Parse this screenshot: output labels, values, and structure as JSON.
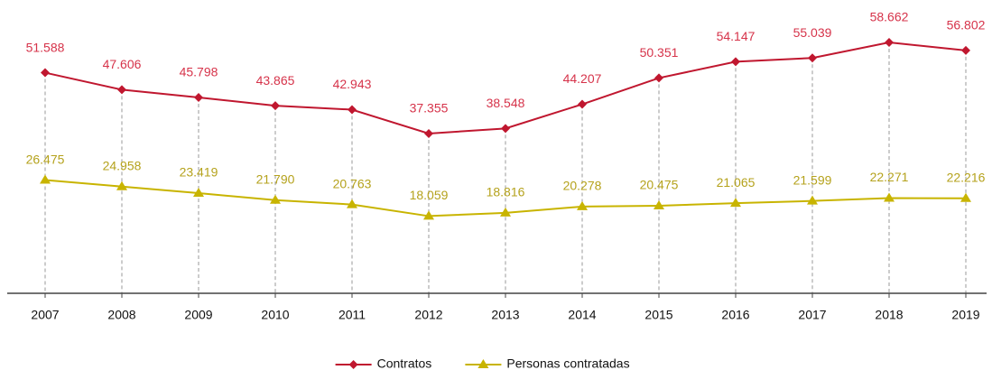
{
  "chart_data": {
    "type": "line",
    "categories": [
      "2007",
      "2008",
      "2009",
      "2010",
      "2011",
      "2012",
      "2013",
      "2014",
      "2015",
      "2016",
      "2017",
      "2018",
      "2019"
    ],
    "series": [
      {
        "name": "Contratos",
        "color": "#c0172f",
        "marker": "diamond",
        "values": [
          51588,
          47606,
          45798,
          43865,
          42943,
          37355,
          38548,
          44207,
          50351,
          54147,
          55039,
          58662,
          56802
        ],
        "value_labels": [
          "51.588",
          "47.606",
          "45.798",
          "43.865",
          "42.943",
          "37.355",
          "38.548",
          "44.207",
          "50.351",
          "54.147",
          "55.039",
          "58.662",
          "56.802"
        ]
      },
      {
        "name": "Personas contratadas",
        "color": "#c8b400",
        "marker": "triangle",
        "values": [
          26475,
          24958,
          23419,
          21790,
          20763,
          18059,
          18816,
          20278,
          20475,
          21065,
          21599,
          22271,
          22216
        ],
        "value_labels": [
          "26.475",
          "24.958",
          "23.419",
          "21.790",
          "20.763",
          "18.059",
          "18.816",
          "20.278",
          "20.475",
          "21.065",
          "21.599",
          "22.271",
          "22.216"
        ]
      }
    ],
    "ylim": [
      0,
      65000
    ],
    "drop_lines": true,
    "legend": "bottom"
  }
}
